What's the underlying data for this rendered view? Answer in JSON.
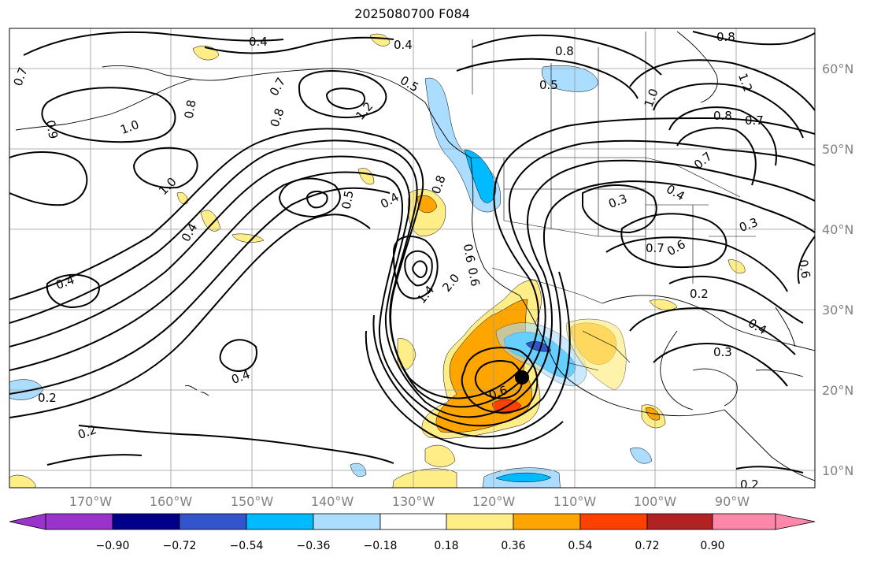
{
  "title": "2025080700 F084",
  "lon_ticks": [
    "170°W",
    "160°W",
    "150°W",
    "140°W",
    "130°W",
    "120°W",
    "110°W",
    "100°W",
    "90°W"
  ],
  "lat_ticks": [
    "60°N",
    "50°N",
    "40°N",
    "30°N",
    "20°N",
    "10°N"
  ],
  "colorbar": {
    "ticks": [
      "−0.90",
      "−0.72",
      "−0.54",
      "−0.36",
      "−0.18",
      "0.18",
      "0.36",
      "0.54",
      "0.72",
      "0.90"
    ],
    "colors": [
      "#9933cc",
      "#000088",
      "#3355cc",
      "#00bbff",
      "#aaddff",
      "#ffffff",
      "#ffee88",
      "#ffa500",
      "#ff4000",
      "#b22222",
      "#ff88aa"
    ]
  },
  "contour_labels": [
    "0.4",
    "0.4",
    "0.7",
    "0.8",
    "0.7",
    "0.8",
    "1.2",
    "0.5",
    "0.5",
    "0.8",
    "1.2",
    "1.0",
    "0.8",
    "0.7",
    "0.9",
    "1.0",
    "0.8",
    "1.0",
    "0.4",
    "0.5",
    "0.4",
    "0.8",
    "0.3",
    "0.4",
    "0.3",
    "0.4",
    "0.7",
    "0.6",
    "0.7",
    "0.6",
    "0.2",
    "0.4",
    "0.3",
    "0.6",
    "0.4",
    "0.2",
    "0.2",
    "0.2",
    "1.4",
    "2.0",
    "0.6",
    "0.6"
  ]
}
